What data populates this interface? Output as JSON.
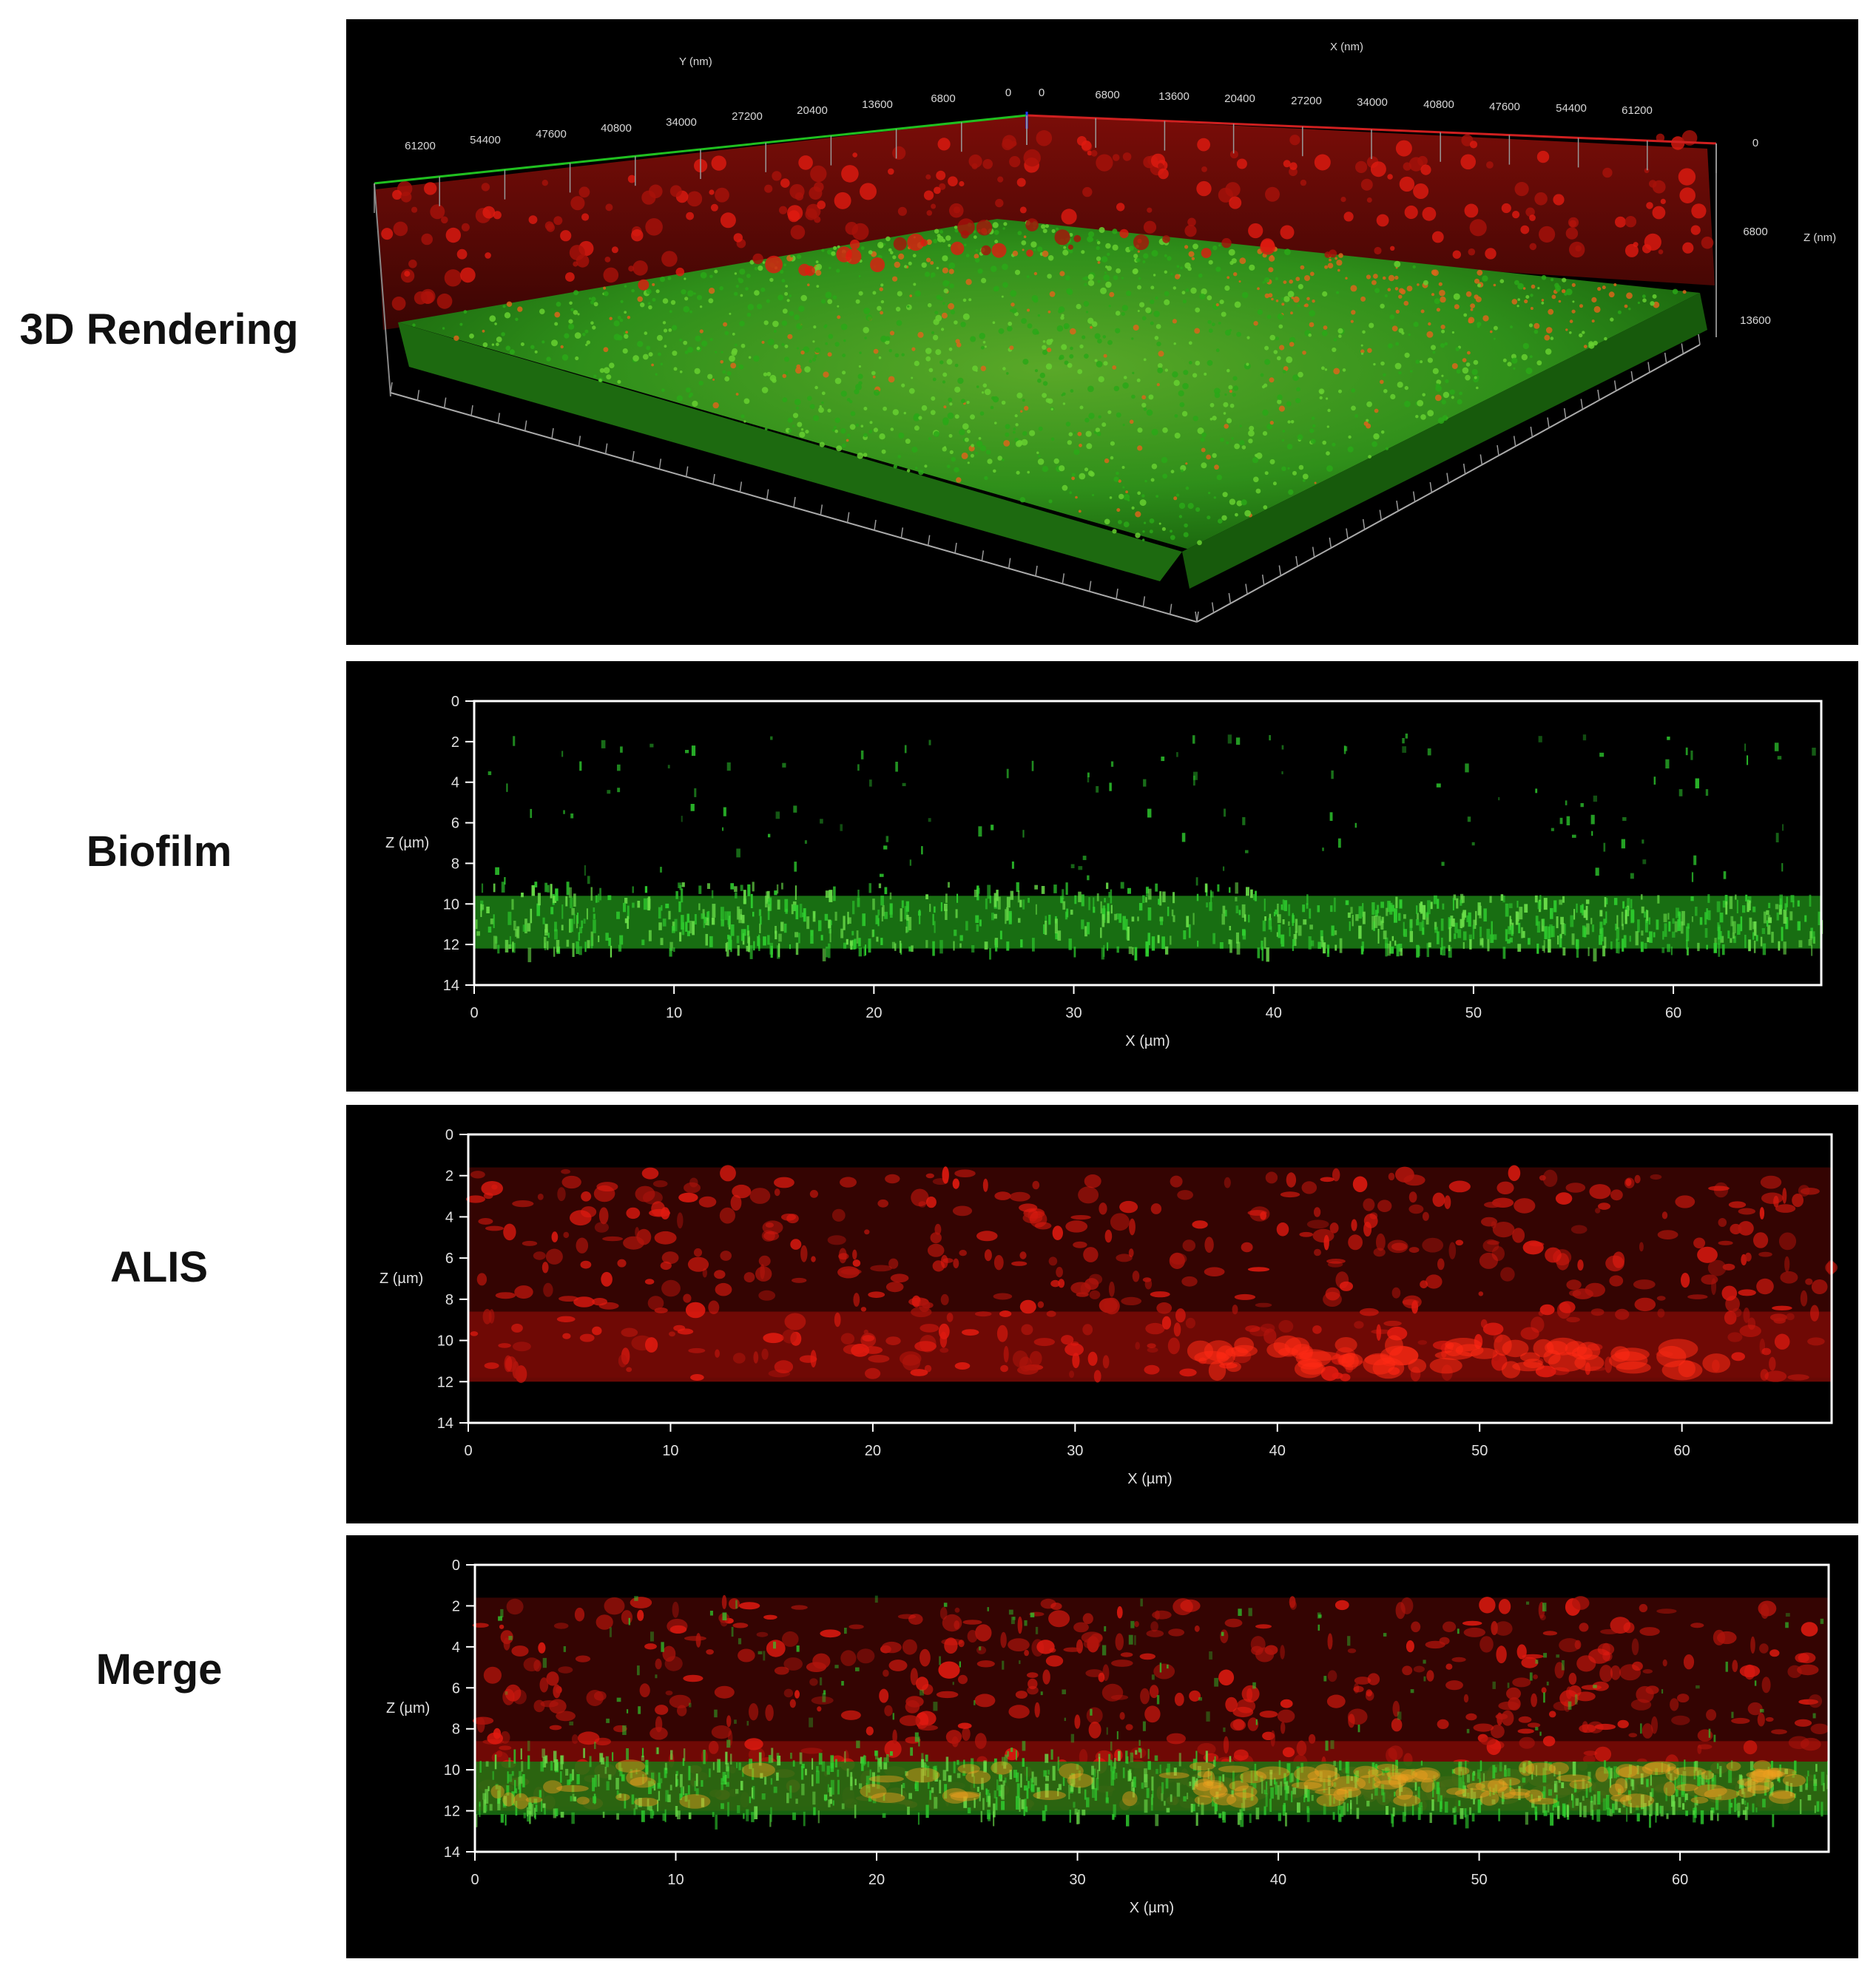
{
  "labels": {
    "rendering3d": "3D Rendering",
    "biofilm": "Biofilm",
    "alis": "ALIS",
    "merge": "Merge"
  },
  "rendering": {
    "y_axis_label": "Y (nm)",
    "x_axis_label": "X (nm)",
    "z_axis_label": "Z (nm)",
    "y_ticks": [
      "61200",
      "54400",
      "47600",
      "40800",
      "34000",
      "27200",
      "20400",
      "13600",
      "6800",
      "0"
    ],
    "x_ticks": [
      "0",
      "6800",
      "13600",
      "20400",
      "27200",
      "34000",
      "40800",
      "47600",
      "54400",
      "61200"
    ],
    "z_ticks": [
      "0",
      "6800",
      "13600"
    ]
  },
  "sections": {
    "x_label": "X (µm)",
    "z_label": "Z (µm)",
    "x_ticks": [
      "0",
      "10",
      "20",
      "30",
      "40",
      "50",
      "60"
    ],
    "z_ticks": [
      "0",
      "2",
      "4",
      "6",
      "8",
      "10",
      "12",
      "14"
    ]
  },
  "colors": {
    "biofilm_channel": "#2fcf2f",
    "alis_channel": "#e01a10",
    "merge_overlap": "#f0a020",
    "x_axis_line": "#d02020",
    "y_axis_line": "#20c020",
    "z_axis_line": "#2040ff",
    "background": "#000000",
    "frame": "#ffffff"
  }
}
